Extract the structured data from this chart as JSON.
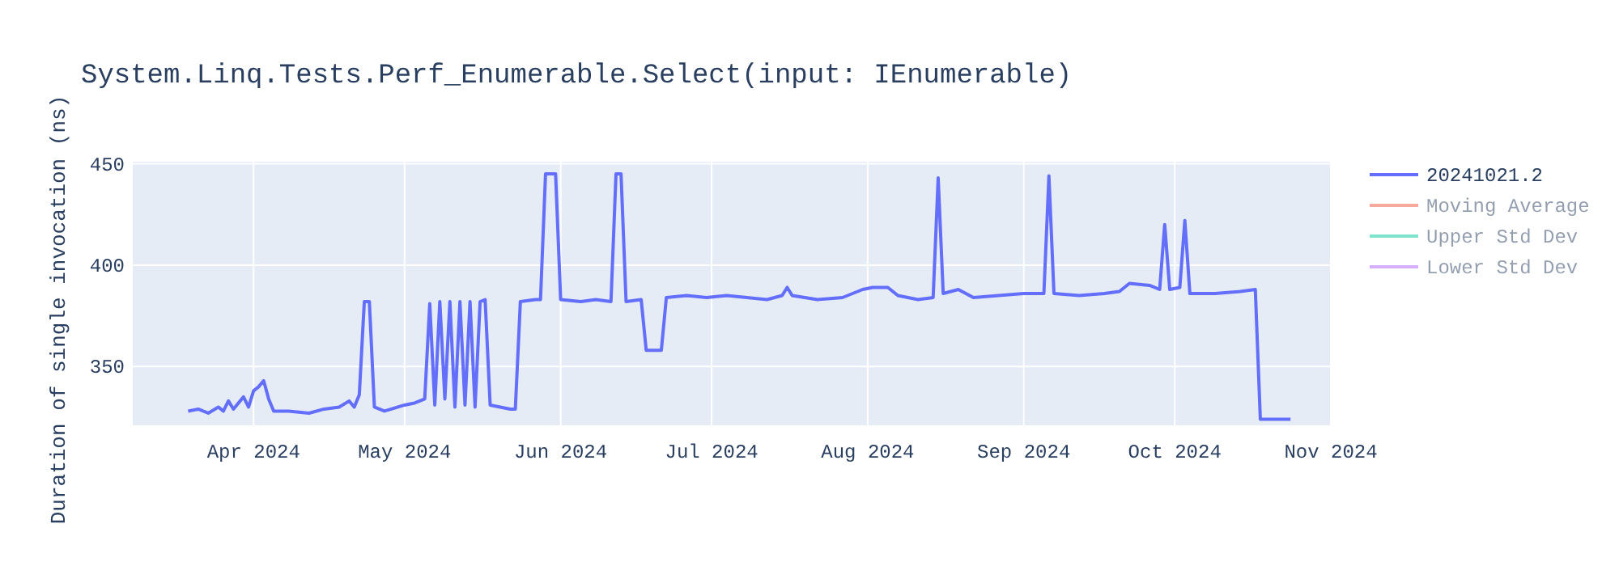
{
  "chart_data": {
    "type": "line",
    "title": "System.Linq.Tests.Perf_Enumerable.Select(input: IEnumerable)",
    "ylabel": "Duration of single invocation (ns)",
    "x": [
      "2024-03-19",
      "2024-03-21",
      "2024-03-23",
      "2024-03-25",
      "2024-03-26",
      "2024-03-27",
      "2024-03-28",
      "2024-03-30",
      "2024-03-31",
      "2024-04-01",
      "2024-04-02",
      "2024-04-03",
      "2024-04-04",
      "2024-04-05",
      "2024-04-08",
      "2024-04-12",
      "2024-04-15",
      "2024-04-18",
      "2024-04-20",
      "2024-04-21",
      "2024-04-22",
      "2024-04-23",
      "2024-04-24",
      "2024-04-25",
      "2024-04-27",
      "2024-05-01",
      "2024-05-03",
      "2024-05-05",
      "2024-05-06",
      "2024-05-07",
      "2024-05-08",
      "2024-05-09",
      "2024-05-10",
      "2024-05-11",
      "2024-05-12",
      "2024-05-13",
      "2024-05-14",
      "2024-05-15",
      "2024-05-16",
      "2024-05-17",
      "2024-05-18",
      "2024-05-20",
      "2024-05-22",
      "2024-05-23",
      "2024-05-24",
      "2024-05-27",
      "2024-05-28",
      "2024-05-29",
      "2024-05-31",
      "2024-06-01",
      "2024-06-05",
      "2024-06-08",
      "2024-06-11",
      "2024-06-12",
      "2024-06-13",
      "2024-06-14",
      "2024-06-17",
      "2024-06-18",
      "2024-06-21",
      "2024-06-22",
      "2024-06-26",
      "2024-06-30",
      "2024-07-04",
      "2024-07-08",
      "2024-07-12",
      "2024-07-15",
      "2024-07-16",
      "2024-07-17",
      "2024-07-22",
      "2024-07-27",
      "2024-07-31",
      "2024-08-02",
      "2024-08-05",
      "2024-08-07",
      "2024-08-11",
      "2024-08-14",
      "2024-08-15",
      "2024-08-16",
      "2024-08-19",
      "2024-08-22",
      "2024-08-27",
      "2024-09-01",
      "2024-09-05",
      "2024-09-06",
      "2024-09-07",
      "2024-09-12",
      "2024-09-17",
      "2024-09-20",
      "2024-09-22",
      "2024-09-26",
      "2024-09-28",
      "2024-09-29",
      "2024-09-30",
      "2024-10-02",
      "2024-10-03",
      "2024-10-04",
      "2024-10-09",
      "2024-10-14",
      "2024-10-17",
      "2024-10-18",
      "2024-10-24"
    ],
    "series": [
      {
        "name": "20241021.2",
        "color": "#636efa",
        "values": [
          328,
          329,
          327,
          330,
          328,
          333,
          329,
          335,
          330,
          338,
          340,
          343,
          334,
          328,
          328,
          327,
          329,
          330,
          333,
          330,
          336,
          382,
          382,
          330,
          328,
          331,
          332,
          334,
          381,
          331,
          382,
          334,
          382,
          330,
          382,
          331,
          382,
          330,
          382,
          383,
          331,
          330,
          329,
          329,
          382,
          383,
          383,
          445,
          445,
          383,
          382,
          383,
          382,
          445,
          445,
          382,
          383,
          358,
          358,
          384,
          385,
          384,
          385,
          384,
          383,
          385,
          389,
          385,
          383,
          384,
          388,
          389,
          389,
          385,
          383,
          384,
          443,
          386,
          388,
          384,
          385,
          386,
          386,
          444,
          386,
          385,
          386,
          387,
          391,
          390,
          388,
          420,
          388,
          389,
          422,
          386,
          386,
          387,
          388,
          324,
          324
        ]
      },
      {
        "name": "Moving Average",
        "color": "#ef553b",
        "values": [
          null,
          null,
          null,
          null,
          null,
          null,
          null,
          null,
          null,
          null,
          null,
          null,
          null,
          null,
          null,
          null,
          null,
          null,
          null,
          null,
          null,
          null,
          null,
          null,
          null,
          null,
          null,
          null,
          null,
          null,
          null,
          null,
          null,
          null,
          null,
          null,
          null,
          null,
          null,
          null,
          null,
          null,
          null,
          null,
          null,
          null,
          null,
          null,
          null,
          null,
          null,
          null,
          null,
          null,
          null,
          null,
          null,
          null,
          null,
          null,
          null,
          null,
          null,
          null,
          null,
          null,
          null,
          null,
          null,
          null,
          null,
          null,
          null,
          null,
          null,
          null,
          null,
          null,
          null,
          null,
          null,
          null,
          null,
          null,
          null,
          null,
          null,
          null,
          null,
          null,
          null,
          null,
          null,
          null,
          null,
          null,
          null,
          null,
          null,
          null,
          null
        ]
      },
      {
        "name": "Upper Std Dev",
        "color": "#00cc96",
        "values": [
          null,
          null,
          null,
          null,
          null,
          null,
          null,
          null,
          null,
          null,
          null,
          null,
          null,
          null,
          null,
          null,
          null,
          null,
          null,
          null,
          null,
          null,
          null,
          null,
          null,
          null,
          null,
          null,
          null,
          null,
          null,
          null,
          null,
          null,
          null,
          null,
          null,
          null,
          null,
          null,
          null,
          null,
          null,
          null,
          null,
          null,
          null,
          null,
          null,
          null,
          null,
          null,
          null,
          null,
          null,
          null,
          null,
          null,
          null,
          null,
          null,
          null,
          null,
          null,
          null,
          null,
          null,
          null,
          null,
          null,
          null,
          null,
          null,
          null,
          null,
          null,
          null,
          null,
          null,
          null,
          null,
          null,
          null,
          null,
          null,
          null,
          null,
          null,
          null,
          null,
          null,
          null,
          null,
          null,
          null,
          null,
          null,
          null,
          null,
          null,
          null
        ]
      },
      {
        "name": "Lower Std Dev",
        "color": "#ab63fa",
        "values": [
          null,
          null,
          null,
          null,
          null,
          null,
          null,
          null,
          null,
          null,
          null,
          null,
          null,
          null,
          null,
          null,
          null,
          null,
          null,
          null,
          null,
          null,
          null,
          null,
          null,
          null,
          null,
          null,
          null,
          null,
          null,
          null,
          null,
          null,
          null,
          null,
          null,
          null,
          null,
          null,
          null,
          null,
          null,
          null,
          null,
          null,
          null,
          null,
          null,
          null,
          null,
          null,
          null,
          null,
          null,
          null,
          null,
          null,
          null,
          null,
          null,
          null,
          null,
          null,
          null,
          null,
          null,
          null,
          null,
          null,
          null,
          null,
          null,
          null,
          null,
          null,
          null,
          null,
          null,
          null,
          null,
          null,
          null,
          null,
          null,
          null,
          null,
          null,
          null,
          null,
          null,
          null,
          null,
          null,
          null,
          null,
          null,
          null,
          null,
          null,
          null
        ]
      }
    ],
    "xlim": [
      "2024-03-08",
      "2024-11-01"
    ],
    "xticks": [
      {
        "value": "2024-04-01",
        "label": "Apr 2024"
      },
      {
        "value": "2024-05-01",
        "label": "May 2024"
      },
      {
        "value": "2024-06-01",
        "label": "Jun 2024"
      },
      {
        "value": "2024-07-01",
        "label": "Jul 2024"
      },
      {
        "value": "2024-08-01",
        "label": "Aug 2024"
      },
      {
        "value": "2024-09-01",
        "label": "Sep 2024"
      },
      {
        "value": "2024-10-01",
        "label": "Oct 2024"
      },
      {
        "value": "2024-11-01",
        "label": "Nov 2024"
      }
    ],
    "ylim": [
      321,
      451
    ],
    "yticks": [
      350,
      400,
      450
    ],
    "grid": true,
    "legend": "right",
    "line_style": "solid"
  }
}
